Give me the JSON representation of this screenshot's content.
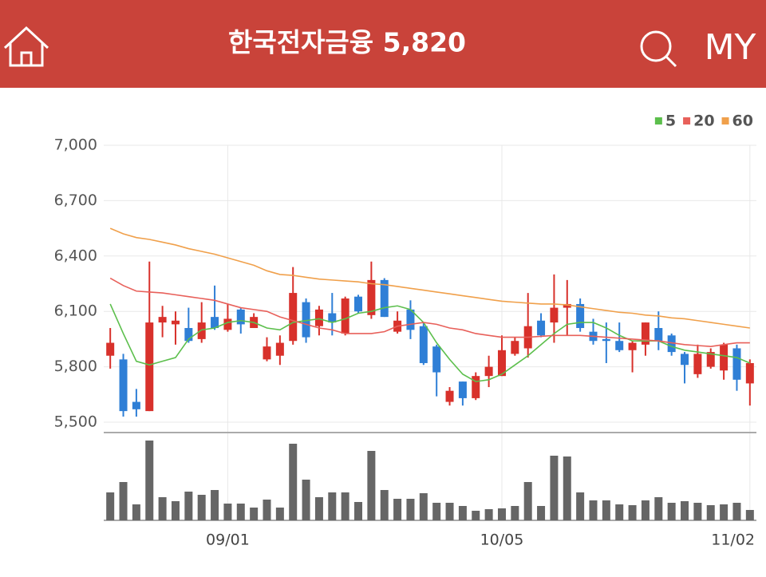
{
  "header": {
    "title": "한국전자금융 5,820",
    "my": "MY"
  },
  "chart_data": {
    "type": "candlestick",
    "legend_position": "top-right",
    "grid": true,
    "categories": [
      null,
      null,
      null,
      null,
      null,
      null,
      null,
      null,
      null,
      "09/01",
      null,
      null,
      null,
      null,
      null,
      null,
      null,
      null,
      null,
      null,
      null,
      null,
      null,
      null,
      null,
      null,
      null,
      null,
      null,
      null,
      "10/05",
      null,
      null,
      null,
      null,
      null,
      null,
      null,
      null,
      null,
      null,
      null,
      null,
      null,
      null,
      null,
      null,
      null,
      null,
      "11/02"
    ],
    "open": [
      5860,
      5840,
      5610,
      5560,
      6040,
      6030,
      6010,
      5950,
      6070,
      6000,
      6110,
      6010,
      5840,
      5860,
      5940,
      6150,
      6020,
      6090,
      5980,
      6180,
      6080,
      6270,
      5990,
      6110,
      6020,
      5910,
      5610,
      5720,
      5630,
      5750,
      5750,
      5870,
      5900,
      6050,
      6040,
      6120,
      6140,
      5990,
      5950,
      5940,
      5890,
      5920,
      6010,
      5970,
      5870,
      5760,
      5800,
      5780,
      5900,
      5710
    ],
    "high": [
      6010,
      5870,
      5680,
      6370,
      6130,
      6100,
      6120,
      6150,
      6240,
      6140,
      6120,
      6090,
      5960,
      5970,
      6340,
      6170,
      6130,
      6200,
      6180,
      6190,
      6370,
      6280,
      6100,
      6160,
      6040,
      5920,
      5690,
      5720,
      5770,
      5860,
      5970,
      5960,
      6200,
      6090,
      6300,
      6270,
      6170,
      6060,
      6040,
      6040,
      5940,
      6040,
      6100,
      5980,
      5880,
      5920,
      5900,
      5930,
      5920,
      5840
    ],
    "low": [
      5790,
      5530,
      5530,
      5560,
      5960,
      5920,
      5930,
      5930,
      6000,
      5990,
      5980,
      6010,
      5830,
      5810,
      5920,
      5930,
      5970,
      5970,
      5970,
      6090,
      6060,
      6070,
      5980,
      5950,
      5810,
      5640,
      5590,
      5590,
      5620,
      5690,
      5750,
      5860,
      5850,
      5960,
      5930,
      5970,
      5990,
      5920,
      5820,
      5880,
      5770,
      5860,
      5890,
      5860,
      5710,
      5740,
      5790,
      5730,
      5670,
      5590
    ],
    "close": [
      5930,
      5560,
      5570,
      6040,
      6070,
      6050,
      5940,
      6040,
      6010,
      6060,
      6030,
      6070,
      5910,
      5930,
      6200,
      5960,
      6110,
      6040,
      6170,
      6100,
      6270,
      6070,
      6050,
      6000,
      5820,
      5770,
      5670,
      5630,
      5750,
      5800,
      5890,
      5940,
      6020,
      5970,
      6120,
      6140,
      6010,
      5940,
      5940,
      5890,
      5930,
      6040,
      5940,
      5880,
      5810,
      5870,
      5880,
      5920,
      5730,
      5820
    ],
    "up_color": "#d8312b",
    "down_color": "#2f7fd6",
    "ylim": [
      5500,
      7000
    ],
    "yticks": [
      {
        "value": 5500,
        "label": "5,500"
      },
      {
        "value": 5800,
        "label": "5,800"
      },
      {
        "value": 6100,
        "label": "6,100"
      },
      {
        "value": 6400,
        "label": "6,400"
      },
      {
        "value": 6700,
        "label": "6,700"
      },
      {
        "value": 7000,
        "label": "7,000"
      }
    ],
    "series": [
      {
        "name": "5",
        "color": "#5cbf4c",
        "values": [
          6140,
          5980,
          5830,
          5810,
          5830,
          5850,
          5950,
          6000,
          6010,
          6040,
          6050,
          6040,
          6010,
          6000,
          6040,
          6050,
          6060,
          6040,
          6060,
          6090,
          6100,
          6120,
          6130,
          6110,
          6040,
          5930,
          5840,
          5760,
          5720,
          5730,
          5760,
          5810,
          5860,
          5920,
          5980,
          6030,
          6040,
          6040,
          6010,
          5970,
          5940,
          5940,
          5940,
          5910,
          5890,
          5880,
          5870,
          5860,
          5850,
          5820
        ]
      },
      {
        "name": "20",
        "color": "#e8605a",
        "values": [
          6280,
          6240,
          6210,
          6205,
          6200,
          6190,
          6180,
          6170,
          6160,
          6140,
          6120,
          6110,
          6100,
          6070,
          6050,
          6030,
          6010,
          6000,
          5980,
          5980,
          5980,
          5990,
          6020,
          6030,
          6040,
          6030,
          6010,
          6000,
          5980,
          5970,
          5960,
          5960,
          5960,
          5965,
          5970,
          5970,
          5970,
          5965,
          5960,
          5955,
          5950,
          5945,
          5940,
          5930,
          5920,
          5915,
          5910,
          5920,
          5930,
          5930
        ]
      },
      {
        "name": "60",
        "color": "#f0a04b",
        "values": [
          6550,
          6520,
          6500,
          6490,
          6475,
          6460,
          6440,
          6425,
          6410,
          6390,
          6370,
          6350,
          6320,
          6300,
          6295,
          6285,
          6275,
          6270,
          6265,
          6260,
          6250,
          6245,
          6235,
          6225,
          6215,
          6205,
          6195,
          6185,
          6175,
          6165,
          6155,
          6150,
          6145,
          6140,
          6140,
          6135,
          6125,
          6115,
          6105,
          6095,
          6090,
          6080,
          6075,
          6065,
          6060,
          6050,
          6040,
          6030,
          6020,
          6010
        ]
      }
    ],
    "volume": {
      "color": "#666666",
      "values": [
        35,
        48,
        20,
        100,
        29,
        24,
        36,
        32,
        38,
        21,
        21,
        16,
        26,
        16,
        96,
        51,
        29,
        35,
        35,
        23,
        87,
        38,
        27,
        27,
        34,
        22,
        22,
        18,
        12,
        14,
        15,
        18,
        48,
        18,
        81,
        80,
        35,
        25,
        25,
        20,
        19,
        25,
        29,
        22,
        24,
        22,
        19,
        20,
        22,
        13
      ]
    }
  }
}
